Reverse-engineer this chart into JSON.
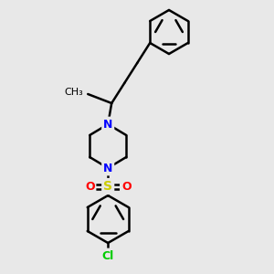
{
  "bg_color": "#e8e8e8",
  "bond_color": "#000000",
  "bond_width": 1.8,
  "atom_colors": {
    "N": "#0000ff",
    "S": "#cccc00",
    "O": "#ff0000",
    "Cl": "#00cc00",
    "C": "#000000"
  },
  "font_size": 9,
  "fig_size": [
    3.0,
    3.0
  ],
  "dpi": 100
}
